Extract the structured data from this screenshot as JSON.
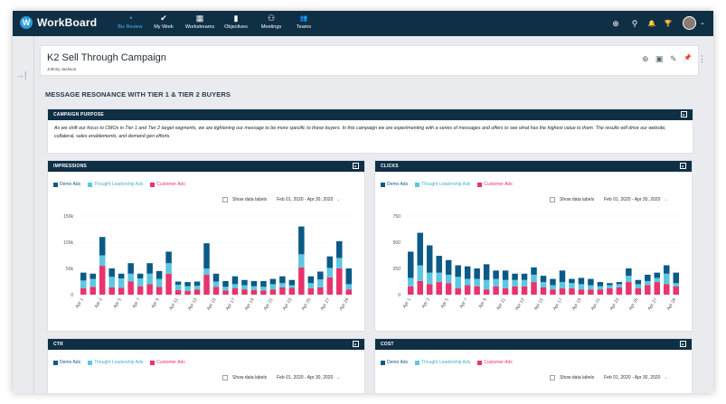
{
  "app": {
    "name": "WorkBoard",
    "logo_glyph": "W"
  },
  "nav": {
    "items": [
      {
        "label": "Biz Review",
        "icon": "gauge-icon",
        "glyph": "◔",
        "active": true
      },
      {
        "label": "My Work",
        "icon": "check-icon",
        "glyph": "✔",
        "active": false
      },
      {
        "label": "Workstreams",
        "icon": "grid-icon",
        "glyph": "▦",
        "active": false
      },
      {
        "label": "Objectives",
        "icon": "bar-chart-icon",
        "glyph": "▮",
        "active": false
      },
      {
        "label": "Meetings",
        "icon": "meetings-icon",
        "glyph": "⚇",
        "active": false
      },
      {
        "label": "Teams",
        "icon": "people-icon",
        "glyph": "👥",
        "active": false
      }
    ],
    "right_icons": [
      {
        "name": "add-icon",
        "glyph": "⊕"
      },
      {
        "name": "search-icon",
        "glyph": "⚲"
      },
      {
        "name": "bell-icon",
        "glyph": "🔔"
      },
      {
        "name": "trophy-icon",
        "glyph": "🏆"
      }
    ],
    "caret": "⌄"
  },
  "page": {
    "title": "K2 Sell Through Campaign",
    "owner": "Johnny Jackson",
    "tools": [
      {
        "name": "globe-icon",
        "glyph": "⊕"
      },
      {
        "name": "present-icon",
        "glyph": "▣"
      },
      {
        "name": "edit-icon",
        "glyph": "✎"
      },
      {
        "name": "pin-icon",
        "glyph": "📌"
      },
      {
        "name": "more-icon",
        "glyph": "⋮"
      }
    ],
    "sidebar_toggle_glyph": "→|"
  },
  "section": {
    "heading": "MESSAGE RESONANCE WITH TIER 1 & TIER 2 BUYERS"
  },
  "purpose": {
    "title": "CAMPAIGN PURPOSE",
    "text": "As we shift our focus to CMOs in Tier 1 and Tier 2 target segments, we are tightening our message to be more specific to these buyers. In this campaign we are experimenting with a series of messages and offers to see what has the highest value to them. The results will drive our website, collateral, sales enablements, and demand gen efforts."
  },
  "colors": {
    "demo": "#0b5a86",
    "thought": "#5cc8e0",
    "customer": "#e8336d",
    "header": "#0f2f45",
    "accent": "#4fb3e8"
  },
  "legend": [
    "Demo Ads",
    "Thought Leadership Ads",
    "Customer Ads"
  ],
  "controls": {
    "show_labels": "Show data labels",
    "date_range": "Feb 01, 2020 - Apr 30, 2020",
    "caret": "⌄",
    "expand_glyph": "▸"
  },
  "widgets": [
    {
      "title": "IMPRESSIONS",
      "chart_data": {
        "type": "bar",
        "stacked": true,
        "y_ticks": [
          "150k",
          "100k",
          "50k",
          "0"
        ],
        "ylim": [
          0,
          150
        ],
        "x_tick_labels": [
          "Apr 1",
          "Apr 3",
          "Apr 5",
          "Apr 7",
          "Apr 9",
          "Apr 11",
          "Apr 13",
          "Apr 15",
          "Apr 17",
          "Apr 19",
          "Apr 21",
          "Apr 23",
          "Apr 25",
          "Apr 27",
          "Apr 29"
        ],
        "series": [
          {
            "name": "Customer Ads",
            "values": [
              12,
              15,
              55,
              14,
              13,
              25,
              16,
              20,
              15,
              40,
              9,
              7,
              10,
              38,
              15,
              8,
              12,
              10,
              9,
              8,
              10,
              14,
              13,
              52,
              12,
              14,
              33,
              50,
              10
            ]
          },
          {
            "name": "Thought Leadership Ads",
            "values": [
              15,
              15,
              20,
              20,
              18,
              15,
              15,
              20,
              15,
              20,
              10,
              9,
              7,
              12,
              10,
              7,
              8,
              8,
              7,
              7,
              10,
              8,
              5,
              25,
              10,
              15,
              18,
              20,
              10
            ]
          },
          {
            "name": "Demo Ads",
            "values": [
              15,
              10,
              35,
              16,
              9,
              20,
              9,
              20,
              15,
              22,
              6,
              8,
              8,
              48,
              15,
              11,
              15,
              10,
              10,
              11,
              10,
              13,
              10,
              53,
              13,
              15,
              22,
              32,
              30
            ]
          }
        ]
      }
    },
    {
      "title": "CLICKS",
      "chart_data": {
        "type": "bar",
        "stacked": true,
        "y_ticks": [
          "750",
          "500",
          "250",
          "0"
        ],
        "ylim": [
          0,
          750
        ],
        "x_tick_labels": [
          "Apr 1",
          "Apr 3",
          "Apr 5",
          "Apr 7",
          "Apr 9",
          "Apr 11",
          "Apr 13",
          "Apr 15",
          "Apr 17",
          "Apr 19",
          "Apr 21",
          "Apr 23",
          "Apr 25",
          "Apr 27",
          "Apr 29"
        ],
        "series": [
          {
            "name": "Customer Ads",
            "values": [
              80,
              130,
              100,
              120,
              110,
              60,
              90,
              80,
              50,
              80,
              60,
              80,
              80,
              120,
              70,
              50,
              60,
              60,
              50,
              50,
              50,
              60,
              70,
              120,
              60,
              90,
              120,
              100,
              80
            ]
          },
          {
            "name": "Thought Leadership Ads",
            "values": [
              80,
              150,
              110,
              90,
              80,
              110,
              60,
              70,
              90,
              70,
              80,
              60,
              60,
              70,
              50,
              40,
              60,
              50,
              50,
              40,
              30,
              30,
              30,
              60,
              40,
              40,
              40,
              100,
              30
            ]
          },
          {
            "name": "Demo Ads",
            "values": [
              250,
              310,
              260,
              160,
              140,
              110,
              120,
              100,
              150,
              80,
              90,
              60,
              60,
              70,
              60,
              60,
              110,
              40,
              60,
              60,
              40,
              20,
              20,
              70,
              40,
              60,
              50,
              80,
              100
            ]
          }
        ]
      }
    },
    {
      "title": "CTR"
    },
    {
      "title": "COST"
    }
  ]
}
